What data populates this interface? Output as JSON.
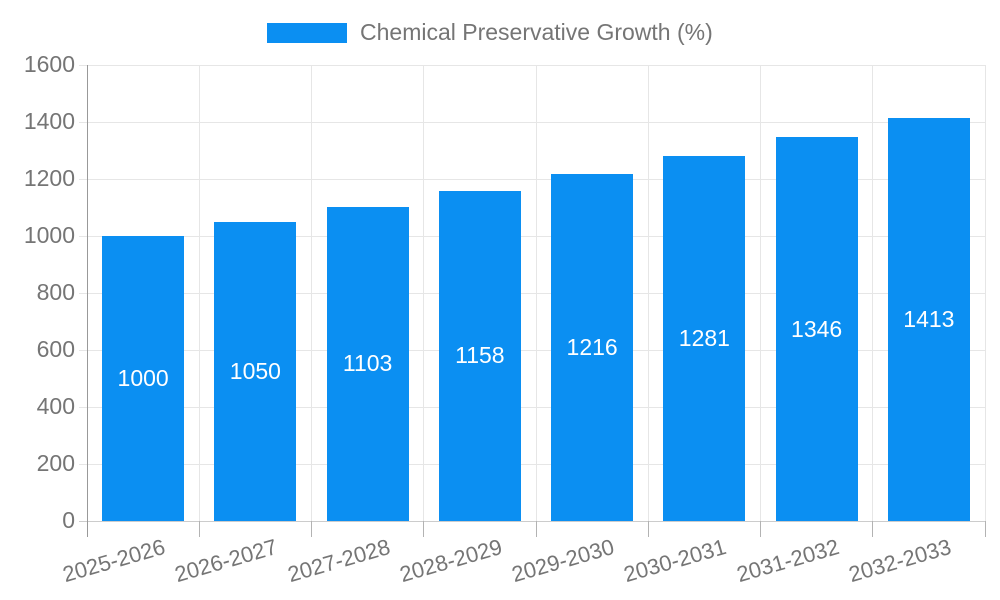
{
  "chart_data": {
    "type": "bar",
    "title": "Chemical Preservative Growth (%)",
    "legend_position": "top",
    "categories": [
      "2025-2026",
      "2026-2027",
      "2027-2028",
      "2028-2029",
      "2029-2030",
      "2030-2031",
      "2031-2032",
      "2032-2033"
    ],
    "values": [
      1000,
      1050,
      1103,
      1158,
      1216,
      1281,
      1346,
      1413
    ],
    "value_labels": [
      "1000",
      "1050",
      "1103",
      "1158",
      "1216",
      "1281",
      "1346",
      "1413"
    ],
    "xlabel": "",
    "ylabel": "",
    "ylim": [
      0,
      1600
    ],
    "yticks": [
      0,
      200,
      400,
      600,
      800,
      1000,
      1200,
      1400,
      1600
    ],
    "grid": true,
    "colors": {
      "bar": "#0b8ff2",
      "value_label": "#ffffff",
      "axis_label": "#757575",
      "gridline": "#e6e6e6",
      "baseline": "#cccccc",
      "axis_line": "#999999",
      "tick": "#b3b3b3",
      "background": "#ffffff"
    }
  }
}
